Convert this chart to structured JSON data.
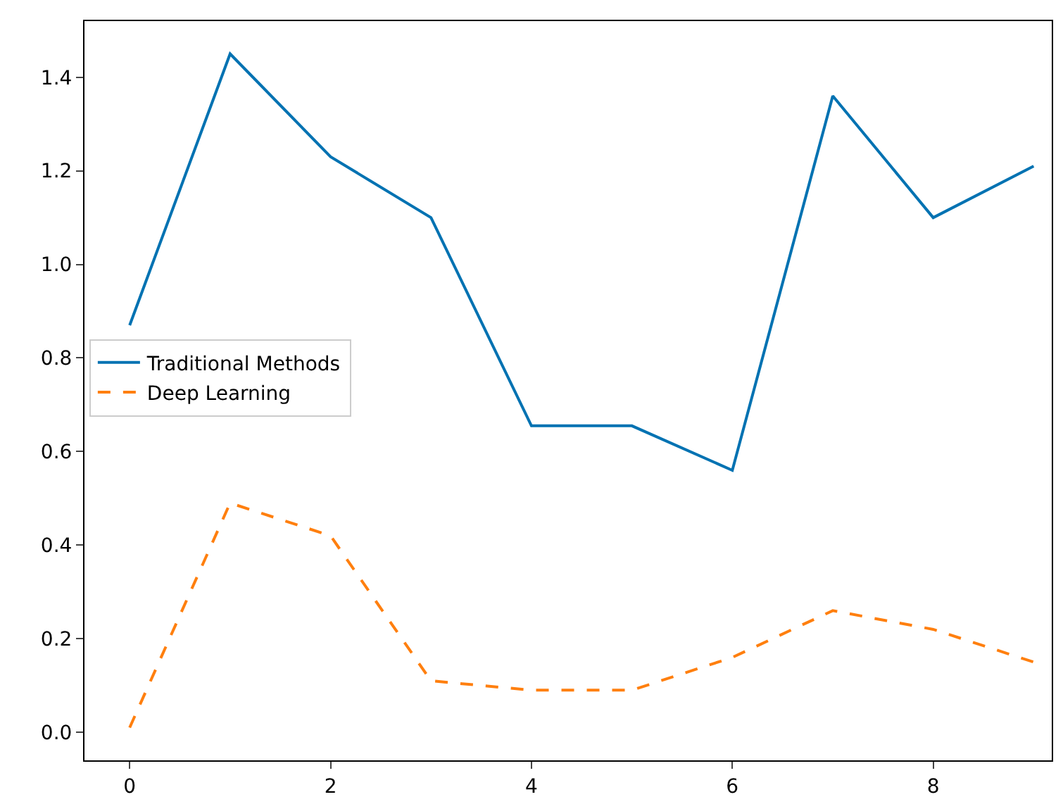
{
  "chart_data": {
    "type": "line",
    "x": [
      0,
      1,
      2,
      3,
      4,
      5,
      6,
      7,
      8,
      9
    ],
    "series": [
      {
        "name": "Traditional Methods",
        "color": "#0072b2",
        "line_style": "solid",
        "values": [
          0.87,
          1.45,
          1.23,
          1.1,
          0.655,
          0.655,
          0.56,
          1.36,
          1.1,
          1.21
        ]
      },
      {
        "name": "Deep Learning",
        "color": "#ff7f0e",
        "line_style": "dashed",
        "values": [
          0.01,
          0.49,
          0.42,
          0.11,
          0.09,
          0.09,
          0.16,
          0.26,
          0.22,
          0.15
        ]
      }
    ],
    "xlim": [
      -0.45,
      9.18
    ],
    "xticks": [
      0,
      2,
      4,
      6,
      8
    ],
    "ylim": [
      -0.06,
      1.52
    ],
    "yticks": [
      {
        "value": 0,
        "label": "0.0"
      },
      {
        "value": 0.2,
        "label": "0.2"
      },
      {
        "value": 0.4,
        "label": "0.4"
      },
      {
        "value": 0.6,
        "label": "0.6"
      },
      {
        "value": 0.8,
        "label": "0.8"
      },
      {
        "value": 1.0,
        "label": "1.0"
      },
      {
        "value": 1.2,
        "label": "1.2"
      },
      {
        "value": 1.4,
        "label": "1.4"
      }
    ],
    "grid": false,
    "legend": "center left",
    "marker": "none"
  }
}
